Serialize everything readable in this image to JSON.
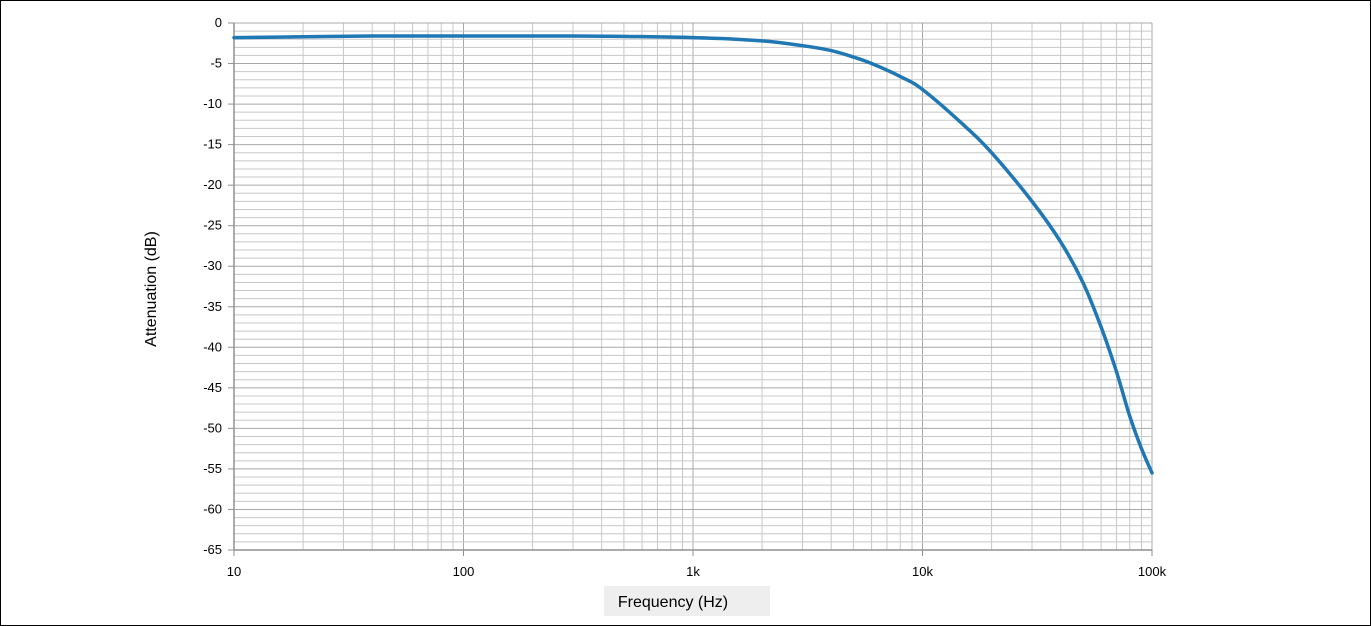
{
  "chart_data": {
    "type": "line",
    "title": "",
    "xlabel": "Frequency (Hz)",
    "ylabel": "Attenuation (dB)",
    "xscale": "log",
    "xlim": [
      10,
      100000
    ],
    "ylim": [
      -65,
      0
    ],
    "grid": true,
    "legend": "none",
    "x_tick_labels": [
      "10",
      "100",
      "1k",
      "10k",
      "100k"
    ],
    "x_tick_values": [
      10,
      100,
      1000,
      10000,
      100000
    ],
    "y_tick_values": [
      0,
      -5,
      -10,
      -15,
      -20,
      -25,
      -30,
      -35,
      -40,
      -45,
      -50,
      -55,
      -60,
      -65
    ],
    "y_tick_labels": [
      "0",
      "-5",
      "-10",
      "-15",
      "-20",
      "-25",
      "-30",
      "-35",
      "-40",
      "-45",
      "-50",
      "-55",
      "-60",
      "-65"
    ],
    "colors": {
      "line": "#1f77b4",
      "grid": "#c8c8c8",
      "axis": "#909090",
      "xlabel_bg": "#eeeeee"
    },
    "series": [
      {
        "x": [
          10,
          20,
          40,
          100,
          300,
          1000,
          2000,
          3000,
          4000,
          5000,
          6000,
          8000,
          10000,
          15000,
          20000,
          30000,
          40000,
          50000,
          60000,
          70000,
          80000,
          90000,
          100000
        ],
        "values": [
          -1.8,
          -1.7,
          -1.6,
          -1.6,
          -1.6,
          -1.8,
          -2.2,
          -2.8,
          -3.4,
          -4.2,
          -5.0,
          -6.6,
          -8.2,
          -12.5,
          -16.0,
          -22.0,
          -27.0,
          -32.0,
          -37.5,
          -43.0,
          -48.5,
          -52.5,
          -55.5
        ]
      }
    ]
  }
}
